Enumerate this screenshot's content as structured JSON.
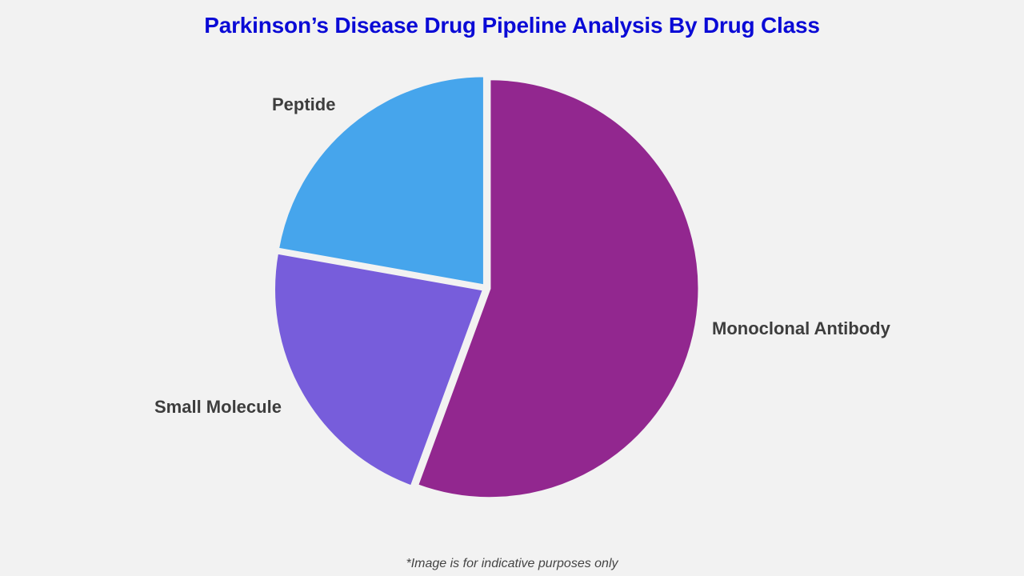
{
  "title": "Parkinson’s Disease Drug Pipeline Analysis By Drug Class",
  "footnote": "*Image is for indicative purposes only",
  "colors": {
    "background": "#f2f2f2",
    "title": "#0a0ad6",
    "label": "#3d3d3d"
  },
  "chart_data": {
    "type": "pie",
    "title": "Parkinson’s Disease Drug Pipeline Analysis By Drug Class",
    "categories": [
      "Monoclonal Antibody",
      "Small Molecule",
      "Peptide"
    ],
    "values": [
      55.6,
      22.2,
      22.2
    ],
    "colors": [
      "#92278f",
      "#775ddb",
      "#46a5ec"
    ],
    "start_angle": "12 o'clock, clockwise",
    "exploded": true,
    "legend": "none (direct labels)",
    "units": "approximate share (%) estimated from slice angles"
  },
  "labels": {
    "monoclonal": "Monoclonal Antibody",
    "small_molecule": "Small Molecule",
    "peptide": "Peptide"
  }
}
